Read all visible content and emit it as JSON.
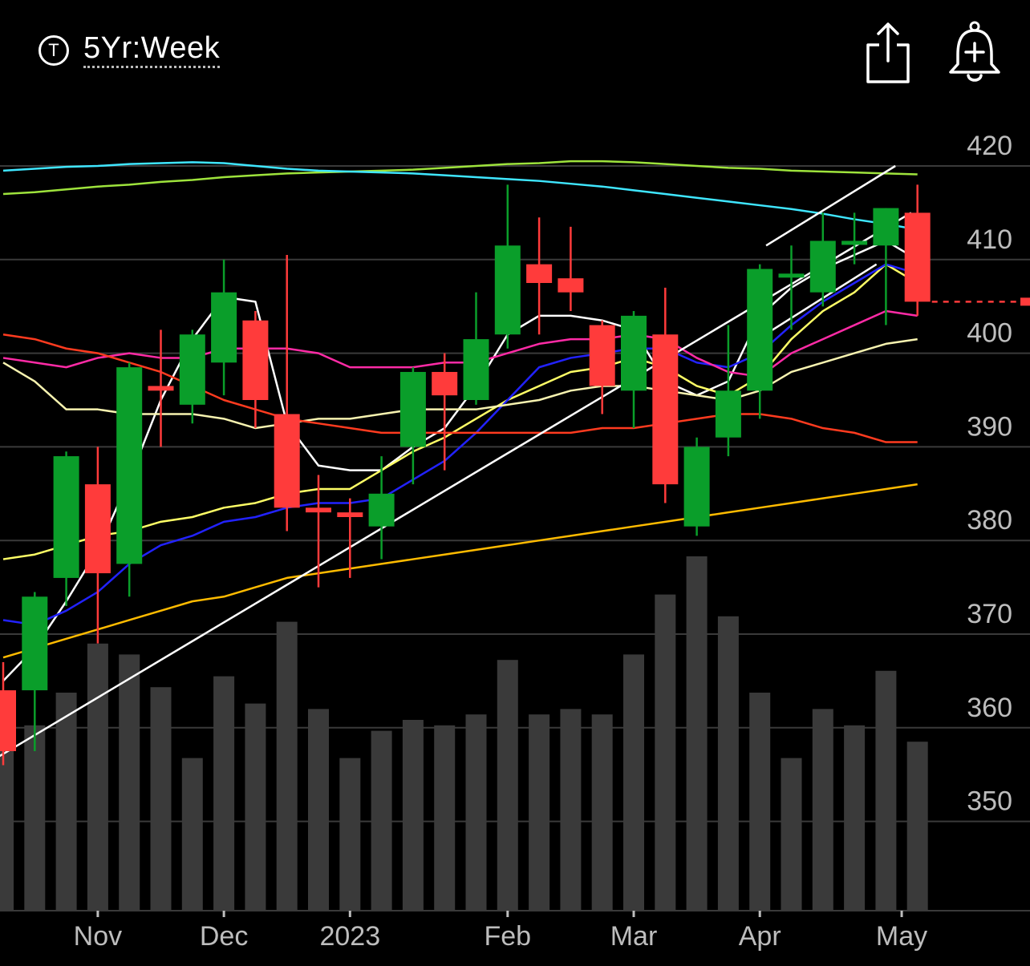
{
  "header": {
    "timeframe_icon": "T",
    "timeframe_label": "5Yr:Week",
    "share_icon": "share-icon",
    "alert_icon": "bell-plus-icon"
  },
  "chart_data": {
    "type": "candlestick",
    "ylim": [
      340,
      425
    ],
    "y_ticks": [
      420,
      410,
      400,
      390,
      380,
      370,
      360,
      350
    ],
    "x_labels": [
      {
        "label": "Nov",
        "week": 3
      },
      {
        "label": "Dec",
        "week": 7
      },
      {
        "label": "2023",
        "week": 11
      },
      {
        "label": "Feb",
        "week": 16
      },
      {
        "label": "Mar",
        "week": 20
      },
      {
        "label": "Apr",
        "week": 24
      },
      {
        "label": "May",
        "week": 28.5
      }
    ],
    "candles": [
      {
        "o": 364.0,
        "h": 367.0,
        "l": 356.0,
        "c": 357.5
      },
      {
        "o": 364.0,
        "h": 374.5,
        "l": 357.5,
        "c": 374.0
      },
      {
        "o": 376.0,
        "h": 389.5,
        "l": 373.0,
        "c": 389.0
      },
      {
        "o": 386.0,
        "h": 390.0,
        "l": 369.0,
        "c": 376.5
      },
      {
        "o": 377.5,
        "h": 399.0,
        "l": 374.0,
        "c": 398.5
      },
      {
        "o": 396.5,
        "h": 402.5,
        "l": 390.0,
        "c": 396.0
      },
      {
        "o": 394.5,
        "h": 402.5,
        "l": 392.5,
        "c": 402.0
      },
      {
        "o": 399.0,
        "h": 410.0,
        "l": 395.5,
        "c": 406.5
      },
      {
        "o": 403.5,
        "h": 404.5,
        "l": 392.0,
        "c": 395.0
      },
      {
        "o": 393.5,
        "h": 410.5,
        "l": 381.0,
        "c": 383.5
      },
      {
        "o": 383.5,
        "h": 387.0,
        "l": 375.0,
        "c": 383.0
      },
      {
        "o": 383.0,
        "h": 384.5,
        "l": 376.0,
        "c": 382.5
      },
      {
        "o": 381.5,
        "h": 389.0,
        "l": 378.0,
        "c": 385.0
      },
      {
        "o": 390.0,
        "h": 398.5,
        "l": 386.0,
        "c": 398.0
      },
      {
        "o": 398.0,
        "h": 400.0,
        "l": 387.5,
        "c": 395.5
      },
      {
        "o": 395.0,
        "h": 406.5,
        "l": 394.5,
        "c": 401.5
      },
      {
        "o": 402.0,
        "h": 418.0,
        "l": 400.5,
        "c": 411.5
      },
      {
        "o": 409.5,
        "h": 414.5,
        "l": 402.0,
        "c": 407.5
      },
      {
        "o": 408.0,
        "h": 413.5,
        "l": 404.5,
        "c": 406.5
      },
      {
        "o": 403.0,
        "h": 403.5,
        "l": 393.5,
        "c": 396.5
      },
      {
        "o": 396.0,
        "h": 404.5,
        "l": 392.0,
        "c": 404.0
      },
      {
        "o": 402.0,
        "h": 407.0,
        "l": 384.0,
        "c": 386.0
      },
      {
        "o": 381.5,
        "h": 391.0,
        "l": 380.5,
        "c": 390.0
      },
      {
        "o": 391.0,
        "h": 403.0,
        "l": 389.0,
        "c": 396.0
      },
      {
        "o": 396.0,
        "h": 409.5,
        "l": 393.0,
        "c": 409.0
      },
      {
        "o": 408.5,
        "h": 411.5,
        "l": 402.5,
        "c": 408.5
      },
      {
        "o": 406.5,
        "h": 415.0,
        "l": 405.0,
        "c": 412.0
      },
      {
        "o": 412.0,
        "h": 415.0,
        "l": 409.5,
        "c": 412.0
      },
      {
        "o": 411.5,
        "h": 415.5,
        "l": 403.0,
        "c": 415.5
      },
      {
        "o": 415.0,
        "h": 418.0,
        "l": 404.0,
        "c": 405.5
      }
    ],
    "volume": [
      0.35,
      0.34,
      0.4,
      0.49,
      0.47,
      0.41,
      0.28,
      0.43,
      0.38,
      0.53,
      0.37,
      0.28,
      0.33,
      0.35,
      0.34,
      0.36,
      0.46,
      0.36,
      0.37,
      0.36,
      0.47,
      0.58,
      0.65,
      0.54,
      0.4,
      0.28,
      0.37,
      0.34,
      0.44,
      0.31
    ],
    "last_price": 405.5,
    "indicators": [
      {
        "color": "#ffffff",
        "values": [
          365.0,
          368.5,
          373.5,
          379.0,
          386.5,
          395.0,
          401.5,
          406.0,
          405.5,
          392.5,
          388.0,
          387.5,
          387.5,
          390.0,
          392.0,
          396.5,
          402.0,
          404.0,
          404.0,
          403.5,
          402.5,
          397.0,
          395.5,
          397.0,
          404.0,
          407.0,
          409.0,
          410.5,
          412.0,
          410.0
        ]
      },
      {
        "color": "#ffff66",
        "values": [
          378.0,
          378.5,
          379.5,
          380.5,
          381.0,
          382.0,
          382.5,
          383.5,
          384.0,
          385.0,
          385.5,
          385.5,
          387.5,
          389.5,
          391.0,
          393.0,
          395.0,
          396.5,
          398.0,
          398.5,
          399.5,
          398.5,
          396.5,
          395.5,
          397.5,
          401.5,
          404.5,
          406.5,
          409.5,
          407.5
        ]
      },
      {
        "color": "#2222ff",
        "values": [
          371.5,
          371.0,
          372.5,
          374.5,
          377.5,
          379.5,
          380.5,
          382.0,
          382.5,
          383.5,
          384.0,
          384.0,
          384.5,
          386.5,
          388.5,
          391.5,
          395.0,
          398.5,
          399.5,
          400.0,
          400.5,
          400.5,
          399.0,
          398.5,
          400.0,
          403.0,
          405.5,
          407.5,
          409.5,
          408.5
        ]
      },
      {
        "color": "#ff2ba6",
        "values": [
          399.5,
          399.0,
          398.5,
          399.5,
          400.0,
          399.5,
          399.5,
          400.5,
          400.5,
          400.5,
          400.0,
          398.5,
          398.5,
          398.5,
          399.0,
          399.0,
          400.0,
          401.0,
          401.5,
          401.5,
          402.0,
          401.5,
          399.5,
          398.0,
          397.5,
          400.0,
          401.5,
          403.0,
          404.5,
          404.0
        ]
      },
      {
        "color": "#f7f3b0",
        "values": [
          399.0,
          397.0,
          394.0,
          394.0,
          393.5,
          393.5,
          393.5,
          393.0,
          392.0,
          392.5,
          393.0,
          393.0,
          393.5,
          394.0,
          394.0,
          394.0,
          394.5,
          395.0,
          396.0,
          396.5,
          396.5,
          396.0,
          395.5,
          395.0,
          396.0,
          398.0,
          399.0,
          400.0,
          401.0,
          401.5
        ]
      },
      {
        "color": "#ff3b1f",
        "values": [
          402.0,
          401.5,
          400.5,
          400.0,
          399.0,
          398.0,
          396.5,
          395.0,
          394.0,
          393.0,
          392.5,
          392.0,
          391.5,
          391.5,
          391.5,
          391.5,
          391.5,
          391.5,
          391.5,
          392.0,
          392.0,
          392.5,
          393.0,
          393.5,
          393.5,
          393.0,
          392.0,
          391.5,
          390.5,
          390.5
        ]
      },
      {
        "color": "#ffbb00",
        "values": [
          367.5,
          368.5,
          369.5,
          370.5,
          371.5,
          372.5,
          373.5,
          374.0,
          375.0,
          376.0,
          376.5,
          377.0,
          377.5,
          378.0,
          378.5,
          379.0,
          379.5,
          380.0,
          380.5,
          381.0,
          381.5,
          382.0,
          382.5,
          383.0,
          383.5,
          384.0,
          384.5,
          385.0,
          385.5,
          386.0
        ]
      },
      {
        "color": "#9ee33c",
        "values": [
          417.0,
          417.2,
          417.5,
          417.8,
          418.0,
          418.3,
          418.5,
          418.8,
          419.0,
          419.2,
          419.3,
          419.4,
          419.5,
          419.6,
          419.8,
          420.0,
          420.2,
          420.3,
          420.5,
          420.5,
          420.4,
          420.2,
          420.0,
          419.8,
          419.7,
          419.5,
          419.4,
          419.3,
          419.2,
          419.1
        ]
      },
      {
        "color": "#3fe6ff",
        "values": [
          419.5,
          419.7,
          419.9,
          420.0,
          420.2,
          420.3,
          420.4,
          420.3,
          420.0,
          419.7,
          419.5,
          419.4,
          419.3,
          419.2,
          419.0,
          418.8,
          418.6,
          418.4,
          418.1,
          417.8,
          417.4,
          417.0,
          416.6,
          416.2,
          415.8,
          415.4,
          414.9,
          414.3,
          413.8,
          413.2
        ]
      }
    ],
    "trendlines": [
      {
        "from": [
          -0.6,
          356.0
        ],
        "to": [
          28.8,
          415.0
        ]
      },
      {
        "from": [
          24.2,
          411.5
        ],
        "to": [
          28.3,
          420.0
        ]
      },
      {
        "from": [
          23.7,
          401.0
        ],
        "to": [
          27.7,
          409.5
        ]
      }
    ]
  }
}
